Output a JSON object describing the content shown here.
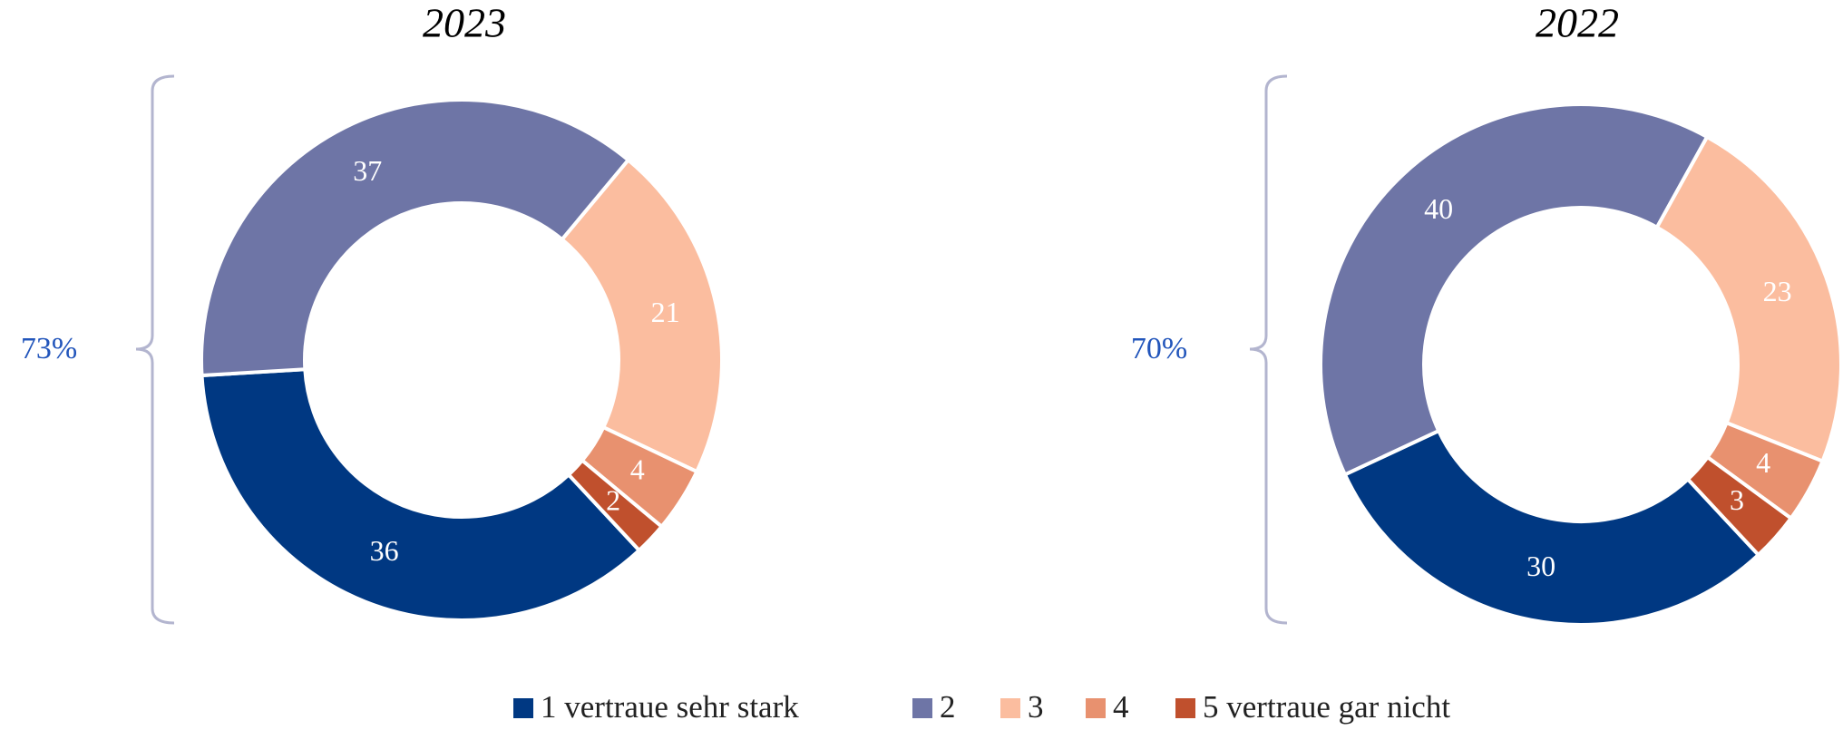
{
  "chart_data": [
    {
      "type": "donut",
      "title": "2023",
      "annotation": "73%",
      "categories": [
        "1 vertraue sehr stark",
        "2",
        "3",
        "4",
        "5 vertraue gar nicht"
      ],
      "values": [
        36,
        37,
        21,
        4,
        2
      ],
      "colors": [
        "#003882",
        "#6e75a6",
        "#fbbd9f",
        "#e8916f",
        "#c0502d"
      ]
    },
    {
      "type": "donut",
      "title": "2022",
      "annotation": "70%",
      "categories": [
        "1 vertraue sehr stark",
        "2",
        "3",
        "4",
        "5 vertraue gar nicht"
      ],
      "values": [
        30,
        40,
        23,
        4,
        3
      ],
      "colors": [
        "#003882",
        "#6e75a6",
        "#fbbd9f",
        "#e8916f",
        "#c0502d"
      ]
    }
  ]
}
